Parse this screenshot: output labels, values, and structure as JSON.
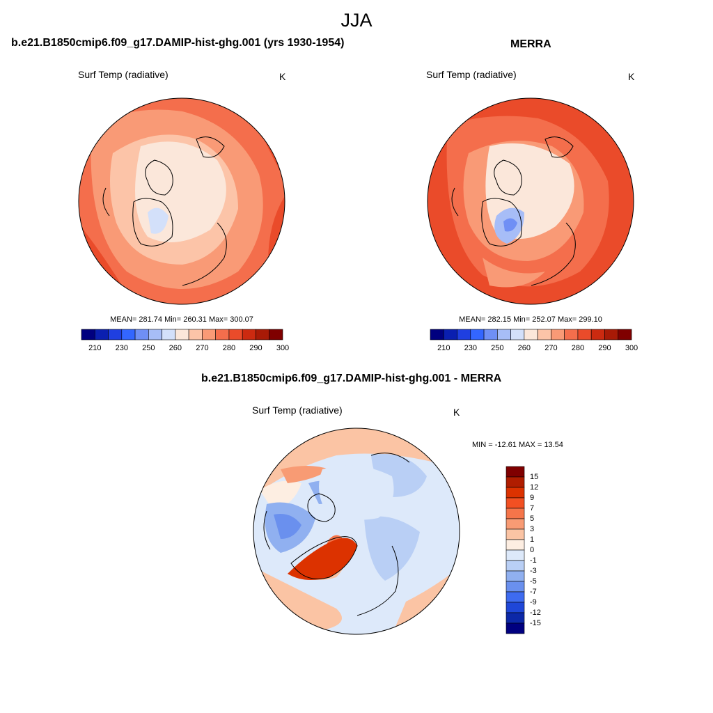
{
  "figure": {
    "title": "JJA"
  },
  "panels": [
    {
      "id": "model",
      "title": "b.e21.B1850cmip6.f09_g17.DAMIP-hist-ghg.001 (yrs 1930-1954)",
      "field": "Surf Temp (radiative)",
      "units": "K",
      "stats": "MEAN= 281.74  Min= 260.31  Max= 300.07",
      "mean": 281.74,
      "min": 260.31,
      "max": 300.07,
      "colorbar": {
        "ticks": [
          "210",
          "230",
          "250",
          "260",
          "270",
          "280",
          "290",
          "300"
        ],
        "colors": [
          "#00007f",
          "#0a1fb0",
          "#1f3fe0",
          "#3366ff",
          "#6f8ff5",
          "#a7bdf7",
          "#d3e0fa",
          "#fbe7da",
          "#fcc4a8",
          "#f99a76",
          "#f46e4c",
          "#ea4b2a",
          "#cc2a10",
          "#a81a06",
          "#7f0000"
        ]
      }
    },
    {
      "id": "obs",
      "title": "MERRA",
      "field": "Surf Temp (radiative)",
      "units": "K",
      "stats": "MEAN= 282.15  Min= 252.07  Max= 299.10",
      "mean": 282.15,
      "min": 252.07,
      "max": 299.1,
      "colorbar": {
        "ticks": [
          "210",
          "230",
          "250",
          "260",
          "270",
          "280",
          "290",
          "300"
        ],
        "colors": [
          "#00007f",
          "#0a1fb0",
          "#1f3fe0",
          "#3366ff",
          "#6f8ff5",
          "#a7bdf7",
          "#d3e0fa",
          "#fbe7da",
          "#fcc4a8",
          "#f99a76",
          "#f46e4c",
          "#ea4b2a",
          "#cc2a10",
          "#a81a06",
          "#7f0000"
        ]
      }
    },
    {
      "id": "diff",
      "title": "b.e21.B1850cmip6.f09_g17.DAMIP-hist-ghg.001 - MERRA",
      "field": "Surf Temp (radiative)",
      "units": "K",
      "stats": "MIN = -12.61 MAX =  13.54",
      "min": -12.61,
      "max": 13.54,
      "colorbar": {
        "ticks": [
          "15",
          "12",
          "9",
          "7",
          "5",
          "3",
          "1",
          "0",
          "-1",
          "-3",
          "-5",
          "-7",
          "-9",
          "-12",
          "-15"
        ],
        "colors": [
          "#7f0000",
          "#b01d00",
          "#dc3200",
          "#f25022",
          "#f5754a",
          "#f89b74",
          "#fbc4a4",
          "#fdeee2",
          "#dde9fa",
          "#b9cff5",
          "#90b0f0",
          "#6a90ee",
          "#3e6bf0",
          "#1f47d8",
          "#0c28a8",
          "#000080"
        ]
      }
    }
  ]
}
